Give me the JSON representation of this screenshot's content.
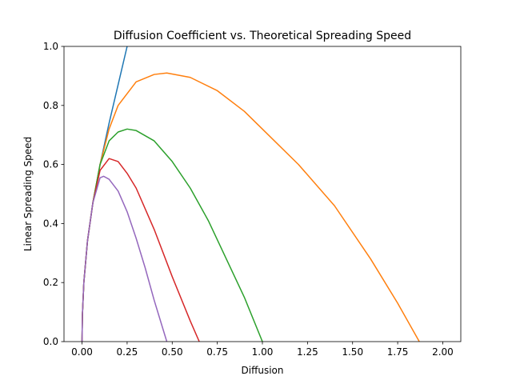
{
  "chart_data": {
    "type": "line",
    "title": "Diffusion Coefficient vs. Theoretical Spreading Speed",
    "xlabel": "Diffusion",
    "ylabel": "Linear Spreading Speed",
    "xlim": [
      -0.1,
      2.1
    ],
    "ylim": [
      0.0,
      1.0
    ],
    "xticks": [
      "0.00",
      "0.25",
      "0.50",
      "0.75",
      "1.00",
      "1.25",
      "1.50",
      "1.75",
      "2.00"
    ],
    "yticks": [
      "0.0",
      "0.2",
      "0.4",
      "0.6",
      "0.8",
      "1.0"
    ],
    "grid": false,
    "series": [
      {
        "color": "#1f77b4",
        "x": [
          0.0,
          0.002,
          0.01,
          0.03,
          0.06,
          0.1,
          0.15,
          0.2,
          0.25
        ],
        "y": [
          0.0,
          0.09,
          0.2,
          0.34,
          0.47,
          0.6,
          0.74,
          0.87,
          1.0
        ]
      },
      {
        "color": "#ff7f0e",
        "x": [
          0.0,
          0.002,
          0.01,
          0.03,
          0.06,
          0.1,
          0.15,
          0.2,
          0.3,
          0.4,
          0.47,
          0.6,
          0.75,
          0.9,
          1.0,
          1.2,
          1.4,
          1.6,
          1.75,
          1.87
        ],
        "y": [
          0.0,
          0.09,
          0.2,
          0.34,
          0.47,
          0.6,
          0.72,
          0.8,
          0.88,
          0.905,
          0.91,
          0.895,
          0.85,
          0.78,
          0.72,
          0.6,
          0.46,
          0.28,
          0.13,
          0.0
        ]
      },
      {
        "color": "#2ca02c",
        "x": [
          0.0,
          0.002,
          0.01,
          0.03,
          0.06,
          0.1,
          0.15,
          0.2,
          0.25,
          0.3,
          0.4,
          0.5,
          0.6,
          0.7,
          0.8,
          0.9,
          1.0
        ],
        "y": [
          0.0,
          0.09,
          0.2,
          0.34,
          0.47,
          0.6,
          0.68,
          0.71,
          0.72,
          0.715,
          0.68,
          0.61,
          0.52,
          0.41,
          0.28,
          0.15,
          0.0
        ]
      },
      {
        "color": "#d62728",
        "x": [
          0.0,
          0.002,
          0.01,
          0.03,
          0.06,
          0.1,
          0.15,
          0.2,
          0.25,
          0.3,
          0.4,
          0.5,
          0.6,
          0.65
        ],
        "y": [
          0.0,
          0.09,
          0.2,
          0.34,
          0.47,
          0.58,
          0.62,
          0.61,
          0.57,
          0.52,
          0.38,
          0.22,
          0.07,
          0.0
        ]
      },
      {
        "color": "#9467bd",
        "x": [
          0.0,
          0.002,
          0.01,
          0.03,
          0.06,
          0.1,
          0.12,
          0.15,
          0.2,
          0.25,
          0.3,
          0.35,
          0.4,
          0.45,
          0.47
        ],
        "y": [
          0.0,
          0.09,
          0.2,
          0.34,
          0.47,
          0.555,
          0.56,
          0.55,
          0.51,
          0.44,
          0.35,
          0.25,
          0.14,
          0.04,
          0.0
        ]
      }
    ]
  }
}
